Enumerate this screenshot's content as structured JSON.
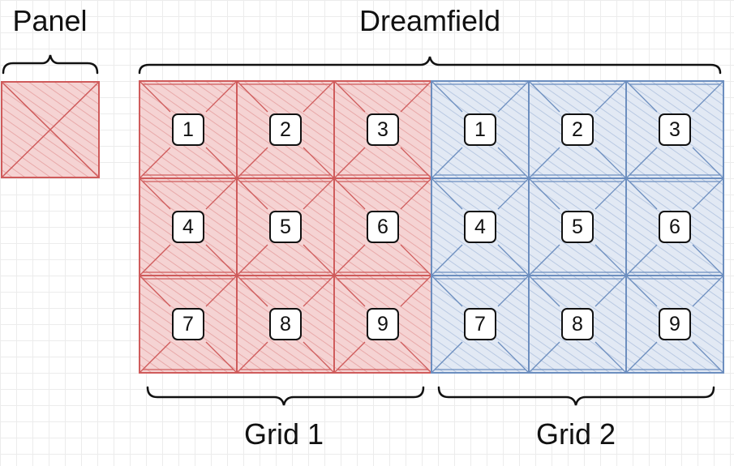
{
  "labels": {
    "panel": "Panel",
    "dreamfield": "Dreamfield",
    "grid1": "Grid 1",
    "grid2": "Grid 2"
  },
  "colors": {
    "red_stroke": "#cf5b5b",
    "red_fill": "#f2c9c9",
    "blue_stroke": "#6c8ebf",
    "blue_fill": "#d9e2f0",
    "bracket": "#111111"
  },
  "grids": [
    {
      "name": "grid-1",
      "color": "red",
      "cells": [
        "1",
        "2",
        "3",
        "4",
        "5",
        "6",
        "7",
        "8",
        "9"
      ]
    },
    {
      "name": "grid-2",
      "color": "blue",
      "cells": [
        "1",
        "2",
        "3",
        "4",
        "5",
        "6",
        "7",
        "8",
        "9"
      ]
    }
  ]
}
